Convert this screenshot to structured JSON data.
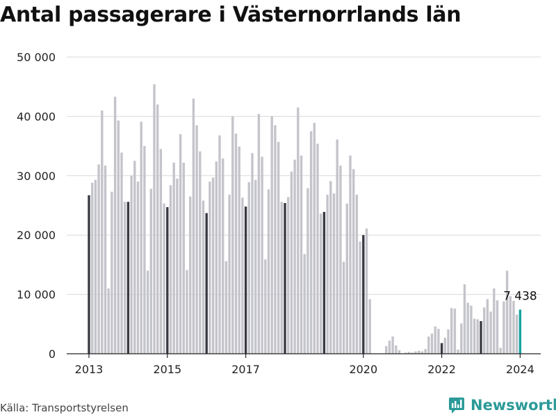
{
  "title": "Antal passagerare i Västernorrlands län",
  "source": "Källa: Transportstyrelsen",
  "brand": {
    "name": "Newsworthy"
  },
  "colors": {
    "bar": "#c4c4cb",
    "january_bar": "#3a3a44",
    "highlight": "#17a2a0",
    "grid": "#d9d9d9",
    "brand": "#2b9a98"
  },
  "chart_data": {
    "type": "bar",
    "title": "Antal passagerare i Västernorrlands län",
    "xlabel": "",
    "ylabel": "",
    "ylim": [
      0,
      50000
    ],
    "y_ticks": [
      0,
      10000,
      20000,
      30000,
      40000,
      50000
    ],
    "y_tick_labels": [
      "0",
      "10 000",
      "20 000",
      "30 000",
      "40 000",
      "50 000"
    ],
    "x_tick_labels": [
      {
        "label": "2013",
        "month": "2013-01"
      },
      {
        "label": "2015",
        "month": "2015-01"
      },
      {
        "label": "2017",
        "month": "2017-01"
      },
      {
        "label": "2020",
        "month": "2020-01"
      },
      {
        "label": "2022",
        "month": "2022-01"
      },
      {
        "label": "2024",
        "month": "2024-01"
      }
    ],
    "january_bars_dark": true,
    "grid": "horizontal",
    "annotation": {
      "label": "7 438",
      "month": "2024-01"
    },
    "series": [
      {
        "start_month": "2013-01",
        "values": [
          26700,
          28800,
          29300,
          31900,
          41000,
          31700,
          11000,
          27300,
          43300,
          39300,
          33900,
          25600,
          25600,
          30000,
          32500,
          29000,
          39100,
          35000,
          14000,
          27800,
          45400,
          42000,
          34500,
          25300,
          24700,
          28400,
          32200,
          29500,
          37000,
          32200,
          14100,
          26500,
          43000,
          38500,
          34100,
          25800,
          23700,
          29000,
          29700,
          32400,
          36800,
          32900,
          15600,
          26800,
          40000,
          37100,
          34900,
          26300,
          24800,
          28900,
          33800,
          29300,
          40400,
          33200,
          15900,
          27700,
          40000,
          38500,
          35700,
          25600,
          25400,
          26400,
          30700,
          32700,
          41500,
          33400,
          16800,
          27900,
          37500,
          38900,
          35400,
          23600,
          23900,
          26800,
          29100,
          27000,
          36100,
          31700,
          15500,
          25300,
          33400,
          31100,
          26800,
          18900,
          20000,
          21100,
          9200,
          0,
          0,
          0,
          0,
          1300,
          2200,
          2900,
          1400,
          600,
          0,
          200,
          300,
          200,
          400,
          500,
          400,
          800,
          2900,
          3400,
          4600,
          4200,
          1800,
          2700,
          4100,
          7700,
          7600,
          700,
          5100,
          11700,
          8600,
          8100,
          5900,
          5800,
          5500,
          7800,
          9200,
          7100,
          11000,
          9000,
          1000,
          8800,
          14000,
          9700,
          8900,
          6600,
          7438
        ]
      }
    ]
  }
}
